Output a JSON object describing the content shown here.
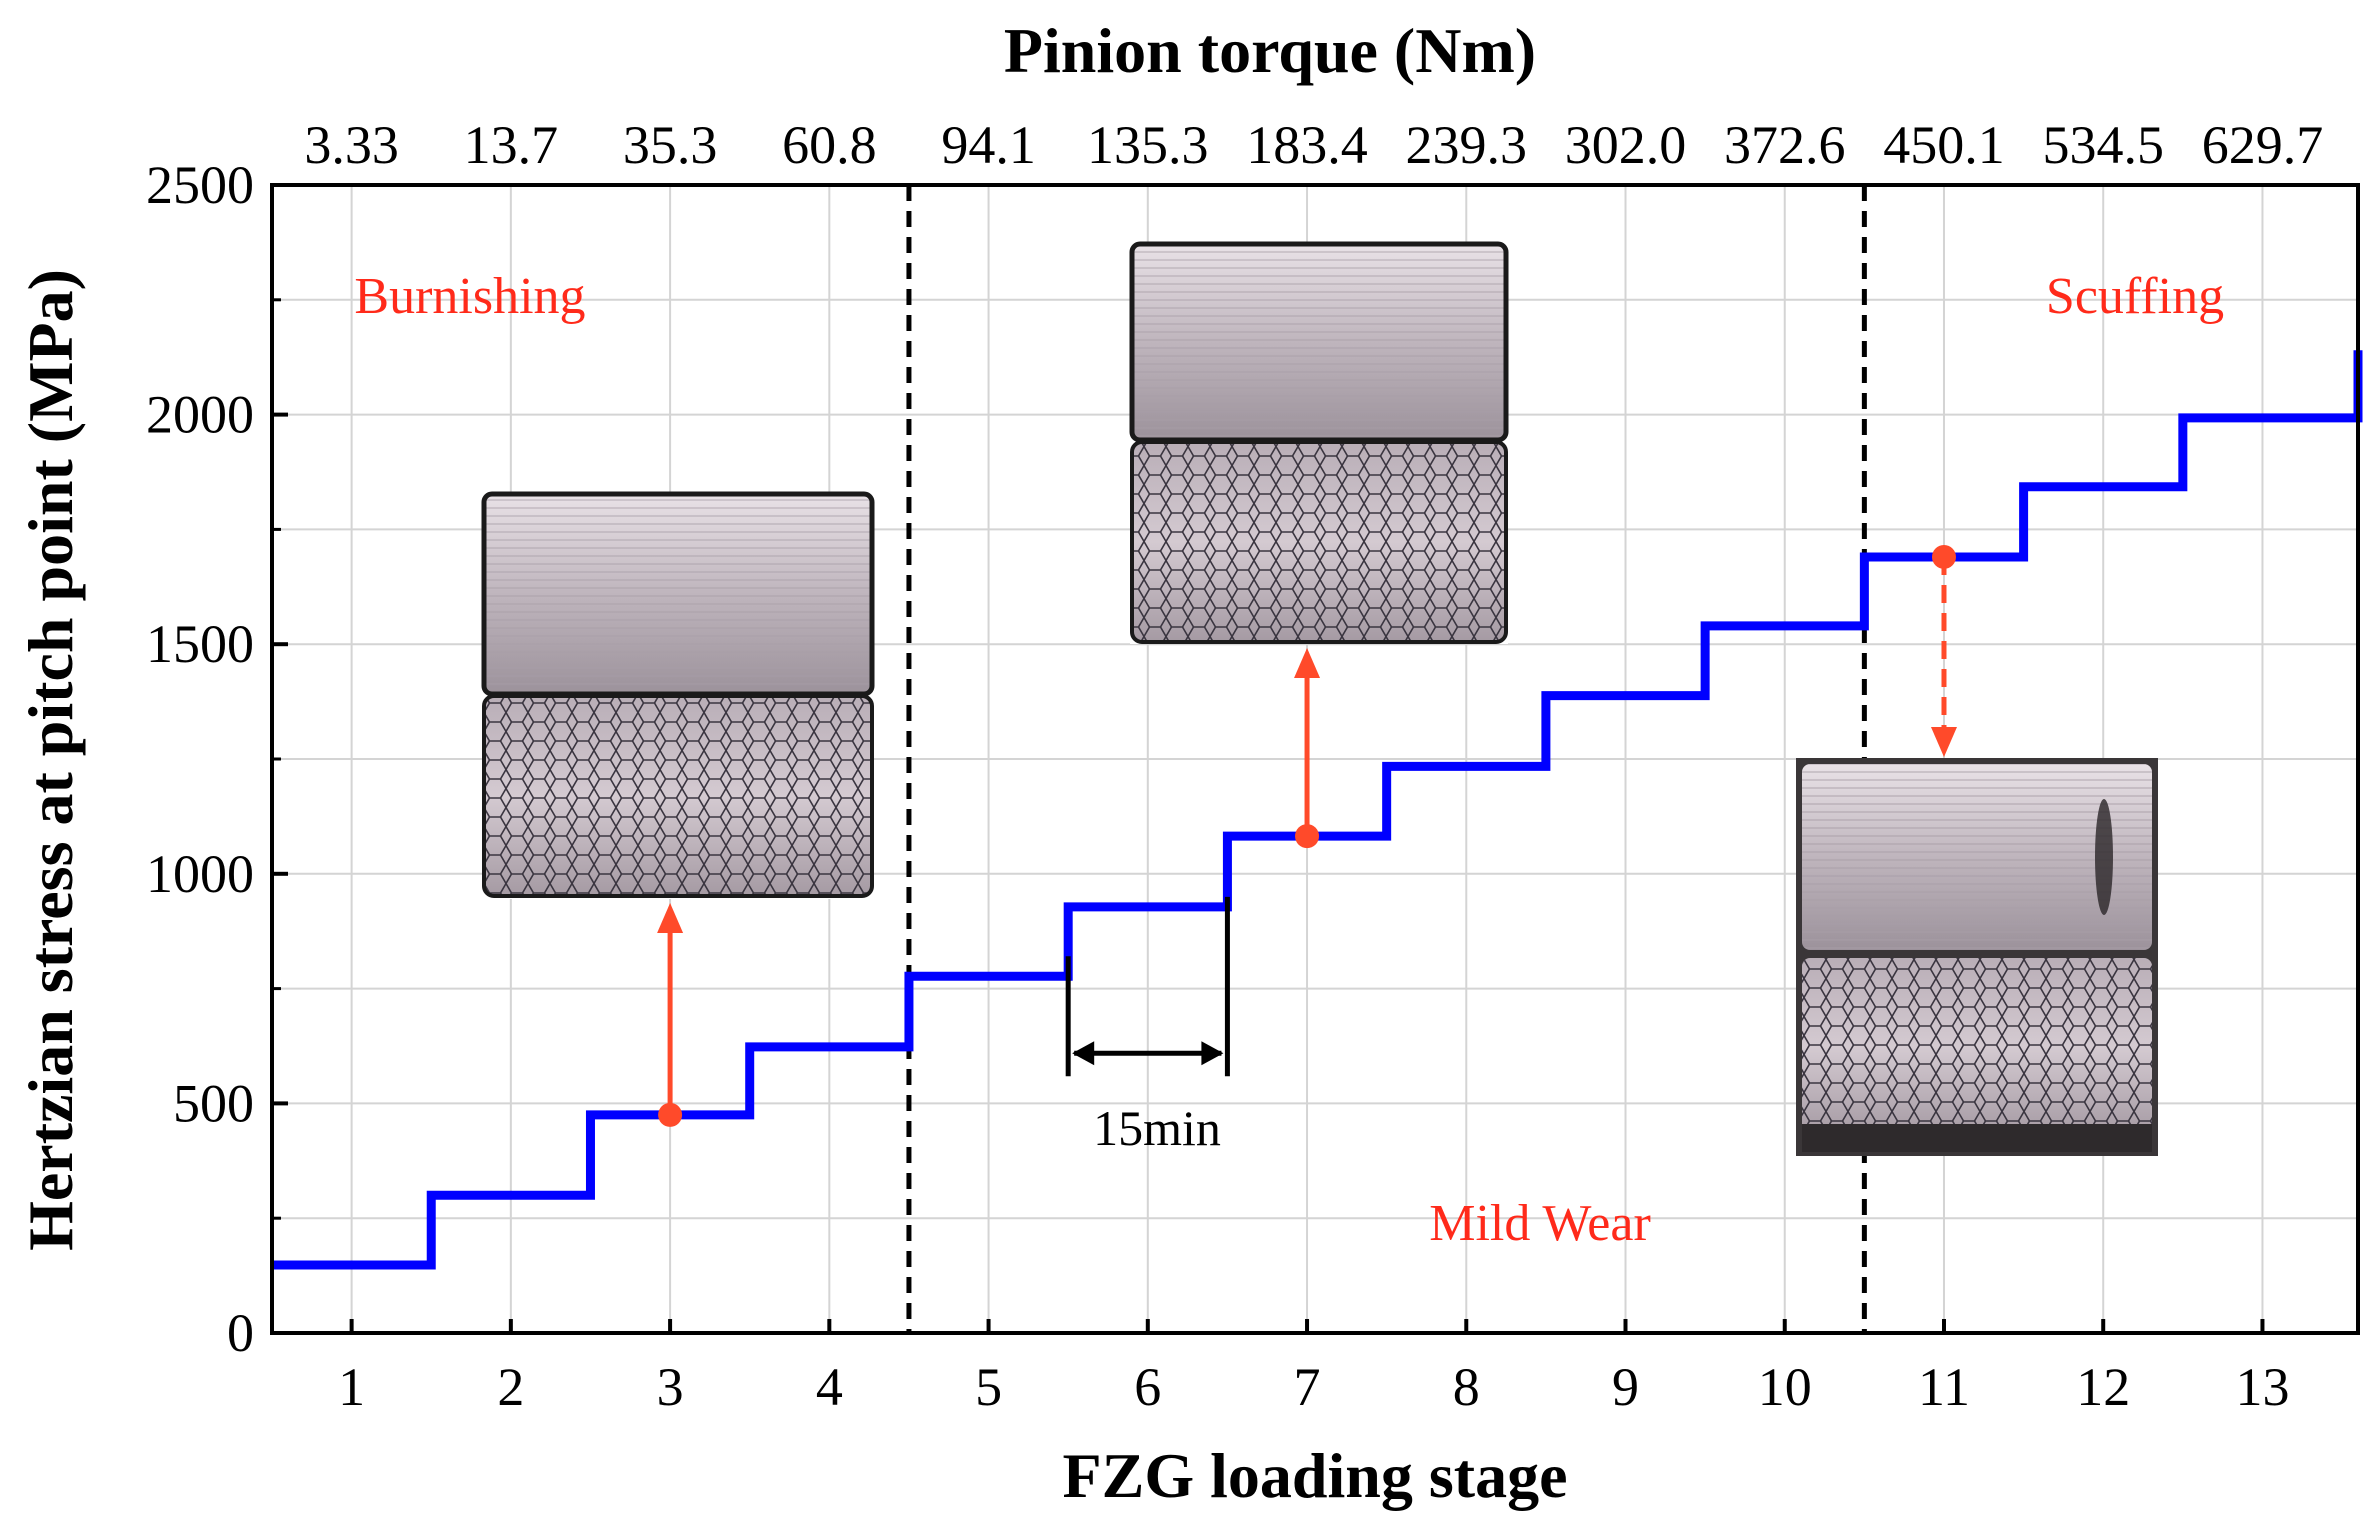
{
  "chart_data": {
    "type": "line",
    "style": "step",
    "top_title": "Pinion torque (Nm)",
    "xlabel": "FZG loading stage",
    "ylabel": "Hertzian stress at pitch point (MPa)",
    "ylim": [
      0,
      2500
    ],
    "y_ticks": [
      "0",
      "500",
      "1000",
      "1500",
      "2000",
      "2500"
    ],
    "x_categories": [
      "1",
      "2",
      "3",
      "4",
      "5",
      "6",
      "7",
      "8",
      "9",
      "10",
      "11",
      "12",
      "13"
    ],
    "pinion_torque": [
      "3.33",
      "13.7",
      "35.3",
      "60.8",
      "94.1",
      "135.3",
      "183.4",
      "239.3",
      "302.0",
      "372.6",
      "450.1",
      "534.5",
      "629.7"
    ],
    "grid": true,
    "series": [
      {
        "name": "Hertzian stress",
        "color": "#0000ff",
        "values": [
          148,
          300,
          475,
          623,
          777,
          928,
          1082,
          1234,
          1388,
          1540,
          1690,
          1843,
          1993
        ]
      }
    ],
    "regions": [
      {
        "label": "Burnishing",
        "stages": [
          1,
          4
        ]
      },
      {
        "label": "Mild Wear",
        "stages": [
          5,
          10
        ]
      },
      {
        "label": "Scuffing",
        "stages": [
          11,
          13
        ]
      }
    ],
    "region_boundaries": [
      4.5,
      10.5
    ],
    "annotations": [
      {
        "label": "15min",
        "from_stage": 5.5,
        "to_stage": 6.5
      },
      {
        "marker_stage": 3,
        "marker_value": 475,
        "arrow_style": "solid"
      },
      {
        "marker_stage": 7,
        "marker_value": 1082,
        "arrow_style": "solid"
      },
      {
        "marker_stage": 11,
        "marker_value": 1690,
        "arrow_style": "dashed"
      }
    ],
    "accent_color": "#ff4a2a"
  }
}
